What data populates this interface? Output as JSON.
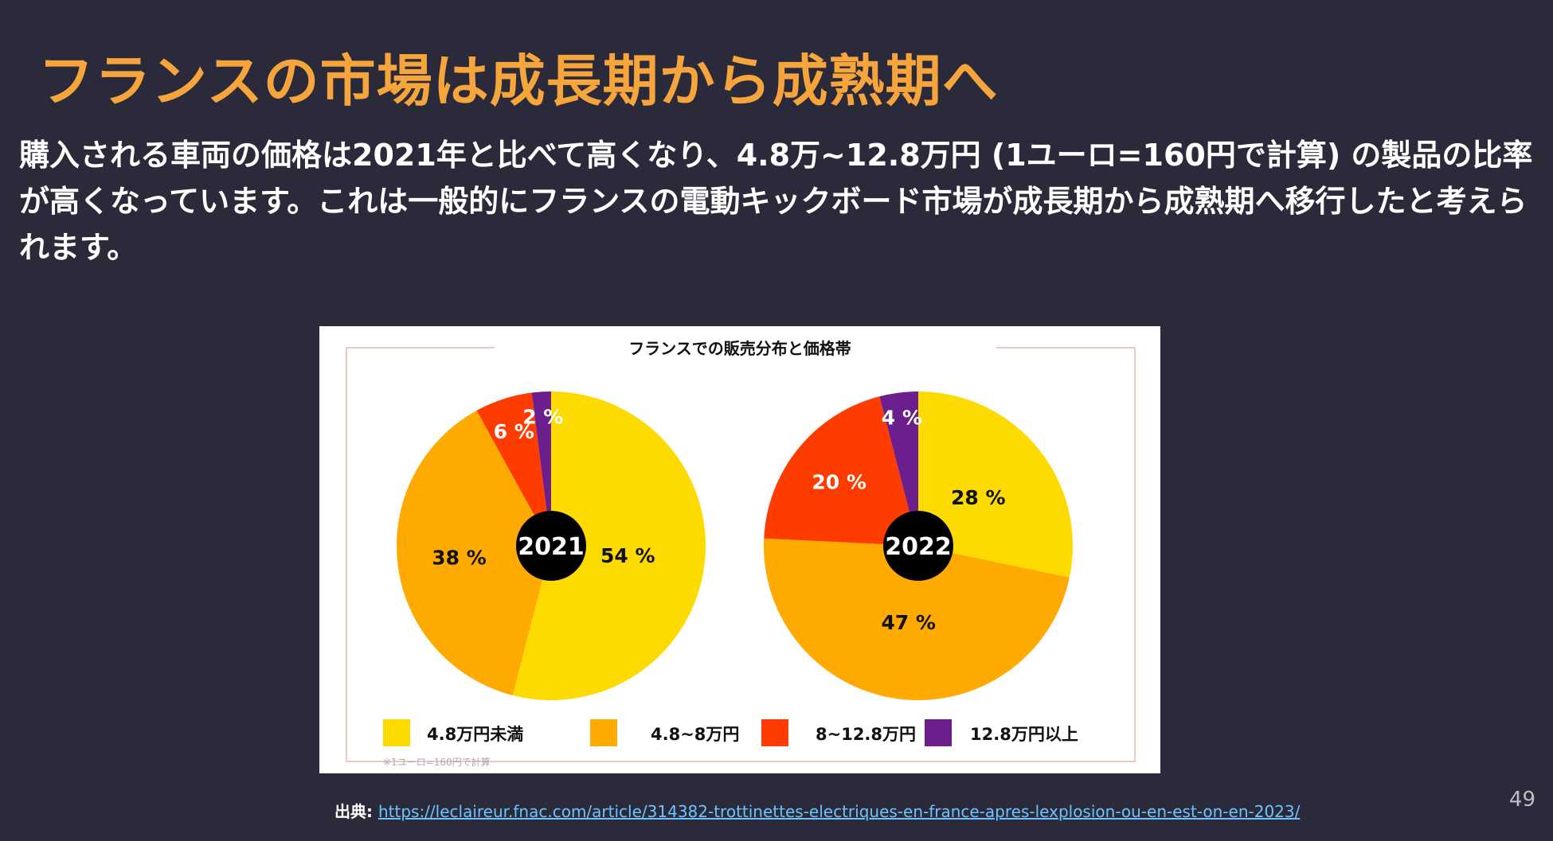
{
  "slide": {
    "title": "フランスの市場は成長期から成熟期へ",
    "description": "購入される車両の価格は2021年と比べて高くなり、4.8万~12.8万円 (1ユーロ=160円で計算) の製品の比率が高くなっています。これは一般的にフランスの電動キックボード市場が成長期から成熟期へ移行したと考えられます。",
    "source_label": "出典:",
    "source_url": "https://leclaireur.fnac.com/article/314382-trottinettes-electriques-en-france-apres-lexplosion-ou-en-est-on-en-2023/",
    "page_number": "49"
  },
  "chart_data": {
    "type": "pie",
    "title": "フランスでの販売分布と価格帯",
    "footnote": "※1ユーロ=160円で計算",
    "categories": [
      "4.8万円未満",
      "4.8~8万円",
      "8~12.8万円",
      "12.8万円以上"
    ],
    "colors": [
      "#fedb00",
      "#ffaa00",
      "#ff3c00",
      "#6a1f8c"
    ],
    "series": [
      {
        "name": "2021",
        "values": [
          54,
          38,
          6,
          2
        ],
        "labels": [
          "54 %",
          "38 %",
          "6 %",
          "2 %"
        ]
      },
      {
        "name": "2022",
        "values": [
          28,
          47,
          20,
          4
        ],
        "labels": [
          "28 %",
          "47 %",
          "20 %",
          "4 %"
        ]
      }
    ]
  }
}
